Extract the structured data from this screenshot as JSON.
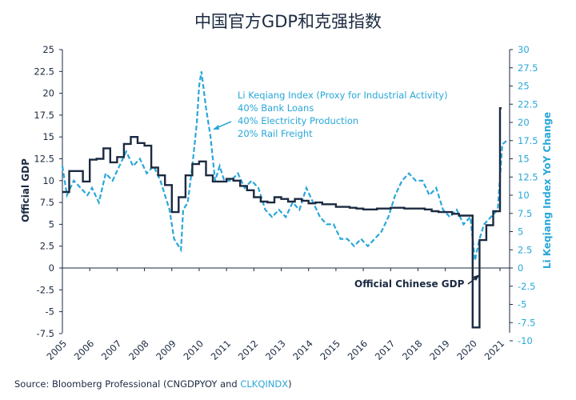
{
  "colors": {
    "gdp": "#1b2a41",
    "li": "#29a7d9",
    "text": "#1b2a41",
    "axis": "#1b2a41"
  },
  "chart_data": {
    "type": "line",
    "title": "中国官方GDP和克强指数",
    "xlabel": "",
    "ylabel_left": "Official GDP",
    "ylabel_right": "Li Keqiang Index YoY Change",
    "ylim_left": [
      -7.5,
      25
    ],
    "ylim_right": [
      -10,
      30
    ],
    "yticks_left": [
      "25",
      "22.5",
      "20",
      "17.5",
      "15",
      "12.5",
      "10",
      "7.5",
      "5",
      "2.5",
      "0",
      "-2.5",
      "-5",
      "-7.5"
    ],
    "yticks_right": [
      "30",
      "27.5",
      "25",
      "22.5",
      "20",
      "17.5",
      "15",
      "12.5",
      "10",
      "7.5",
      "5",
      "2.5",
      "0",
      "-2.5",
      "-5",
      "-7.5",
      "-10"
    ],
    "xticks": [
      "2005",
      "2006",
      "2007",
      "2008",
      "2009",
      "2010",
      "2011",
      "2012",
      "2013",
      "2014",
      "2015",
      "2016",
      "2017",
      "2018",
      "2019",
      "2020",
      "2021"
    ],
    "grid": false,
    "series": [
      {
        "name": "Official Chinese GDP",
        "axis": "left",
        "style": "step",
        "x": [
          "2005-01",
          "2005-04",
          "2005-07",
          "2005-10",
          "2006-01",
          "2006-04",
          "2006-07",
          "2006-10",
          "2007-01",
          "2007-04",
          "2007-07",
          "2007-10",
          "2008-01",
          "2008-04",
          "2008-07",
          "2008-10",
          "2009-01",
          "2009-04",
          "2009-07",
          "2009-10",
          "2010-01",
          "2010-04",
          "2010-07",
          "2010-10",
          "2011-01",
          "2011-04",
          "2011-07",
          "2011-10",
          "2012-01",
          "2012-04",
          "2012-07",
          "2012-10",
          "2013-01",
          "2013-04",
          "2013-07",
          "2013-10",
          "2014-01",
          "2014-04",
          "2014-07",
          "2014-10",
          "2015-01",
          "2015-04",
          "2015-07",
          "2015-10",
          "2016-01",
          "2016-04",
          "2016-07",
          "2016-10",
          "2017-01",
          "2017-04",
          "2017-07",
          "2017-10",
          "2018-01",
          "2018-04",
          "2018-07",
          "2018-10",
          "2019-01",
          "2019-04",
          "2019-07",
          "2019-10",
          "2020-01",
          "2020-04",
          "2020-07",
          "2020-10",
          "2021-01"
        ],
        "values": [
          8.7,
          11.1,
          11.1,
          9.9,
          12.4,
          12.5,
          13.7,
          12.1,
          12.7,
          14.2,
          15.0,
          14.3,
          14.0,
          11.5,
          10.6,
          9.5,
          6.4,
          8.1,
          10.6,
          11.9,
          12.2,
          10.6,
          9.9,
          9.9,
          10.2,
          10.0,
          9.4,
          8.9,
          8.1,
          7.6,
          7.5,
          8.1,
          7.9,
          7.6,
          7.9,
          7.7,
          7.4,
          7.5,
          7.3,
          7.3,
          7.0,
          7.0,
          6.9,
          6.8,
          6.7,
          6.7,
          6.8,
          6.8,
          6.9,
          6.9,
          6.8,
          6.8,
          6.8,
          6.7,
          6.5,
          6.4,
          6.4,
          6.2,
          6.0,
          6.0,
          -6.8,
          3.2,
          4.9,
          6.5,
          18.3
        ]
      },
      {
        "name": "Li Keqiang Index (Proxy for Industrial Activity)",
        "axis": "right",
        "style": "dashed",
        "x": [
          "2005-01",
          "2005-03",
          "2005-06",
          "2005-09",
          "2005-12",
          "2006-02",
          "2006-05",
          "2006-08",
          "2006-11",
          "2007-02",
          "2007-05",
          "2007-08",
          "2007-11",
          "2008-02",
          "2008-05",
          "2008-08",
          "2008-10",
          "2008-12",
          "2009-02",
          "2009-04",
          "2009-05",
          "2009-06",
          "2009-08",
          "2009-10",
          "2009-12",
          "2010-01",
          "2010-02",
          "2010-04",
          "2010-06",
          "2010-08",
          "2010-10",
          "2010-12",
          "2011-03",
          "2011-06",
          "2011-09",
          "2011-12",
          "2012-03",
          "2012-06",
          "2012-09",
          "2012-12",
          "2013-03",
          "2013-06",
          "2013-09",
          "2013-12",
          "2014-03",
          "2014-06",
          "2014-09",
          "2014-12",
          "2015-03",
          "2015-06",
          "2015-09",
          "2015-12",
          "2016-03",
          "2016-06",
          "2016-09",
          "2016-12",
          "2017-03",
          "2017-06",
          "2017-09",
          "2017-12",
          "2018-03",
          "2018-06",
          "2018-09",
          "2018-12",
          "2019-03",
          "2019-06",
          "2019-09",
          "2019-12",
          "2020-02",
          "2020-04",
          "2020-06",
          "2020-09",
          "2020-12",
          "2021-02",
          "2021-04"
        ],
        "values": [
          14,
          10,
          12,
          11,
          10,
          11,
          9,
          13,
          12,
          14,
          16,
          14,
          15,
          13,
          14,
          12,
          10,
          8,
          4,
          3,
          2.5,
          8,
          9,
          14,
          20,
          25,
          27,
          22,
          18,
          12,
          14,
          12,
          12,
          13,
          11,
          12,
          11,
          8,
          7,
          8,
          7,
          9,
          8,
          11,
          9,
          7,
          6,
          6,
          4,
          4,
          3,
          4,
          3,
          4,
          5,
          7,
          10,
          12,
          13,
          12,
          12,
          10,
          11,
          8,
          7,
          8,
          6,
          7,
          1,
          4,
          6,
          7,
          8,
          17,
          17.5
        ]
      }
    ],
    "annotations": {
      "li_label_lines": [
        "Li Keqiang Index (Proxy for Industrial Activity)",
        "40% Bank Loans",
        "40% Electricity Production",
        "20% Rail Freight"
      ],
      "gdp_label": "Official Chinese GDP"
    }
  },
  "source": {
    "prefix": "Source: Bloomberg Professional (CNGDPYOY and ",
    "highlight": "CLKQINDX",
    "suffix": ")"
  }
}
